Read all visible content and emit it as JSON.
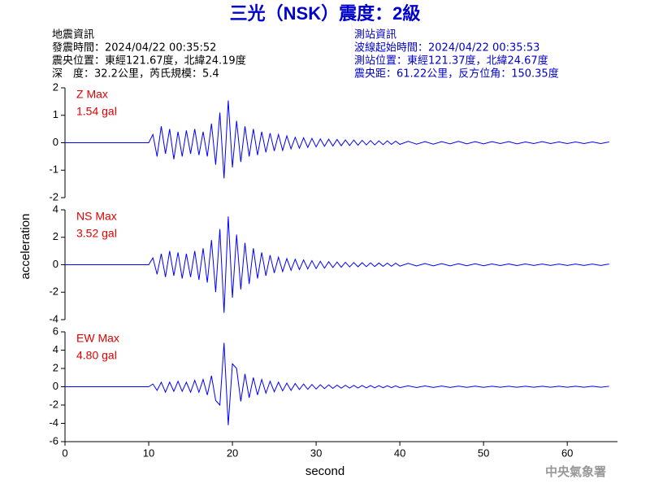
{
  "header": {
    "title": "三光（NSK）震度：2級",
    "left": [
      "地震資訊",
      "發震時間：2024/04/22 00:35:52",
      "震央位置：東經121.67度，北緯24.19度",
      "深　度：32.2公里，芮氏規模：5.4"
    ],
    "right": [
      "測站資訊",
      "波線起始時間：2024/04/22 00:35:53",
      "測站位置：東經121.37度，北緯24.67度",
      "震央距：61.22公里，反方位角：150.35度"
    ]
  },
  "axes": {
    "y_label": "acceleration",
    "x_label": "second"
  },
  "watermark": "中央氣象署",
  "chart_data": [
    {
      "type": "line",
      "label": "Z Max",
      "max": "1.54 gal",
      "color": "#0000ff",
      "xlim": [
        0,
        66
      ],
      "ylim": [
        -2,
        2
      ],
      "yticks": [
        -2,
        -1,
        0,
        1,
        2
      ],
      "x": [
        0,
        10,
        10.5,
        11,
        11.5,
        12,
        12.5,
        13,
        13.5,
        14,
        14.5,
        15,
        15.5,
        16,
        16.5,
        17,
        17.5,
        18,
        18.5,
        19,
        19.5,
        20,
        20.5,
        21,
        21.5,
        22,
        22.5,
        23,
        23.5,
        24,
        24.5,
        25,
        25.5,
        26,
        26.5,
        27,
        27.5,
        28,
        28.5,
        29,
        29.5,
        30,
        30.5,
        31,
        31.5,
        32,
        32.5,
        33,
        33.5,
        34,
        34.5,
        35,
        35.5,
        36,
        36.5,
        37,
        37.5,
        38,
        38.5,
        39,
        39.5,
        40,
        41,
        42,
        43,
        44,
        45,
        46,
        47,
        48,
        49,
        50,
        51,
        52,
        53,
        54,
        55,
        56,
        57,
        58,
        59,
        60,
        61,
        62,
        63,
        64,
        65
      ],
      "values": [
        0,
        0,
        0.3,
        -0.5,
        0.6,
        -0.4,
        0.5,
        -0.6,
        0.4,
        -0.5,
        0.45,
        -0.4,
        0.5,
        -0.45,
        0.4,
        -0.5,
        0.7,
        -0.8,
        1.1,
        -1.3,
        1.54,
        -0.9,
        0.8,
        -0.7,
        0.6,
        -0.5,
        0.5,
        -0.45,
        0.4,
        -0.35,
        0.35,
        -0.3,
        0.3,
        -0.28,
        0.25,
        -0.22,
        0.2,
        -0.2,
        0.18,
        -0.17,
        0.16,
        -0.15,
        0.14,
        -0.13,
        0.13,
        -0.12,
        0.12,
        -0.11,
        0.1,
        -0.1,
        0.1,
        -0.09,
        0.09,
        -0.08,
        0.08,
        -0.08,
        0.07,
        -0.07,
        0.07,
        -0.06,
        0.06,
        -0.06,
        0.05,
        -0.05,
        0.04,
        -0.05,
        0.04,
        -0.04,
        0.05,
        -0.04,
        0.04,
        -0.04,
        0.04,
        -0.03,
        0.04,
        -0.04,
        0.03,
        -0.03,
        0.04,
        -0.03,
        0.03,
        -0.03,
        0.03,
        -0.03,
        0.03,
        -0.03,
        0.03
      ]
    },
    {
      "type": "line",
      "label": "NS Max",
      "max": "3.52 gal",
      "color": "#0000ff",
      "xlim": [
        0,
        66
      ],
      "ylim": [
        -4,
        4
      ],
      "yticks": [
        -4,
        -2,
        0,
        2,
        4
      ],
      "x": [
        0,
        10,
        10.5,
        11,
        11.5,
        12,
        12.5,
        13,
        13.5,
        14,
        14.5,
        15,
        15.5,
        16,
        16.5,
        17,
        17.5,
        18,
        18.5,
        19,
        19.5,
        20,
        20.5,
        21,
        21.5,
        22,
        22.5,
        23,
        23.5,
        24,
        24.5,
        25,
        25.5,
        26,
        26.5,
        27,
        27.5,
        28,
        28.5,
        29,
        29.5,
        30,
        30.5,
        31,
        31.5,
        32,
        32.5,
        33,
        33.5,
        34,
        34.5,
        35,
        35.5,
        36,
        36.5,
        37,
        37.5,
        38,
        38.5,
        39,
        39.5,
        40,
        41,
        42,
        43,
        44,
        45,
        46,
        47,
        48,
        49,
        50,
        51,
        52,
        53,
        54,
        55,
        56,
        57,
        58,
        59,
        60,
        61,
        62,
        63,
        64,
        65
      ],
      "values": [
        0,
        0,
        0.5,
        -0.7,
        0.8,
        -0.9,
        1.0,
        -0.8,
        0.9,
        -1.0,
        0.8,
        -0.9,
        1.0,
        -1.1,
        1.2,
        -1.3,
        1.8,
        -2.0,
        2.6,
        -3.5,
        3.52,
        -2.4,
        2.2,
        -1.8,
        1.6,
        -1.4,
        1.2,
        -1.0,
        0.9,
        -0.8,
        0.7,
        -0.6,
        0.55,
        -0.5,
        0.45,
        -0.4,
        0.4,
        -0.35,
        0.35,
        -0.3,
        0.3,
        -0.28,
        0.25,
        -0.25,
        0.22,
        -0.2,
        0.2,
        -0.18,
        0.18,
        -0.16,
        0.16,
        -0.15,
        0.15,
        -0.14,
        0.14,
        -0.13,
        0.13,
        -0.12,
        0.12,
        -0.11,
        0.11,
        -0.1,
        0.1,
        -0.09,
        0.09,
        -0.08,
        0.08,
        -0.08,
        0.07,
        -0.07,
        0.07,
        -0.07,
        0.06,
        -0.06,
        0.06,
        -0.06,
        0.06,
        -0.05,
        0.05,
        -0.05,
        0.05,
        -0.05,
        0.05,
        -0.05,
        0.05,
        -0.05,
        0.05
      ]
    },
    {
      "type": "line",
      "label": "EW Max",
      "max": "4.80 gal",
      "color": "#0000ff",
      "xlim": [
        0,
        66
      ],
      "xticks": [
        0,
        10,
        20,
        30,
        40,
        50,
        60
      ],
      "ylim": [
        -6,
        6
      ],
      "yticks": [
        -6,
        -4,
        -2,
        0,
        2,
        4,
        6
      ],
      "x": [
        0,
        10,
        10.5,
        11,
        11.5,
        12,
        12.5,
        13,
        13.5,
        14,
        14.5,
        15,
        15.5,
        16,
        16.5,
        17,
        17.5,
        18,
        18.5,
        19,
        19.5,
        20,
        20.5,
        21,
        21.5,
        22,
        22.5,
        23,
        23.5,
        24,
        24.5,
        25,
        25.5,
        26,
        26.5,
        27,
        27.5,
        28,
        28.5,
        29,
        29.5,
        30,
        30.5,
        31,
        31.5,
        32,
        32.5,
        33,
        33.5,
        34,
        34.5,
        35,
        35.5,
        36,
        36.5,
        37,
        37.5,
        38,
        38.5,
        39,
        39.5,
        40,
        41,
        42,
        43,
        44,
        45,
        46,
        47,
        48,
        49,
        50,
        51,
        52,
        53,
        54,
        55,
        56,
        57,
        58,
        59,
        60,
        61,
        62,
        63,
        64,
        65
      ],
      "values": [
        0,
        0,
        0.3,
        -0.4,
        0.5,
        -0.6,
        0.5,
        -0.5,
        0.6,
        -0.5,
        0.5,
        -0.6,
        0.7,
        -0.6,
        0.8,
        -0.9,
        1.2,
        -1.5,
        -2.0,
        4.8,
        -4.2,
        2.5,
        2.0,
        -1.6,
        1.4,
        -1.2,
        1.0,
        -0.9,
        0.8,
        -0.7,
        0.6,
        -0.55,
        0.5,
        -0.45,
        0.4,
        -0.4,
        0.35,
        -0.3,
        0.3,
        -0.28,
        0.25,
        -0.25,
        0.22,
        -0.2,
        0.2,
        -0.18,
        0.18,
        -0.16,
        0.16,
        -0.15,
        0.15,
        -0.14,
        0.14,
        -0.13,
        0.13,
        -0.12,
        0.12,
        -0.11,
        0.11,
        -0.1,
        0.1,
        -0.1,
        0.1,
        -0.09,
        0.09,
        -0.08,
        0.08,
        -0.08,
        0.07,
        -0.07,
        0.07,
        -0.07,
        0.06,
        -0.06,
        0.06,
        -0.06,
        0.06,
        -0.05,
        0.05,
        -0.05,
        0.05,
        -0.05,
        0.05,
        -0.05,
        0.05,
        -0.05,
        0.05
      ]
    }
  ]
}
